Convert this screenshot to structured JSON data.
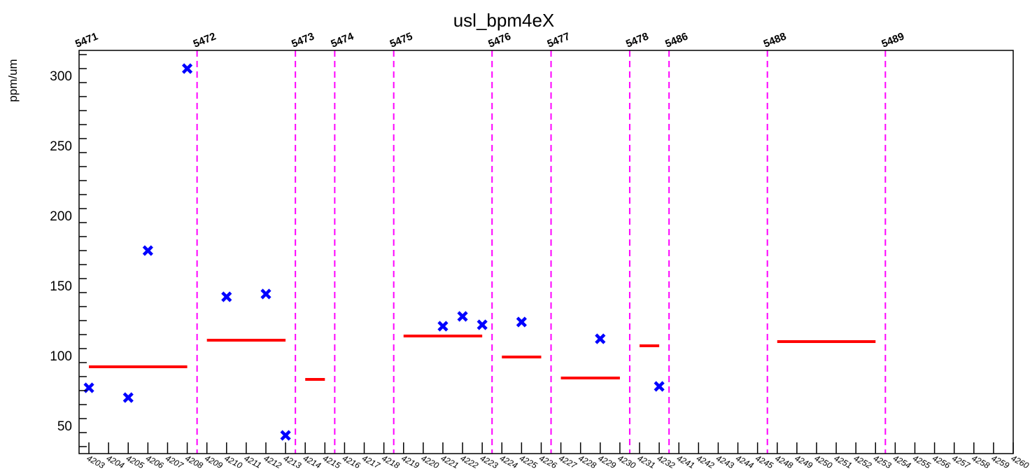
{
  "chart_data": {
    "type": "scatter",
    "title": "usl_bpm4eX",
    "ylabel": "ppm/um",
    "xlabel": "",
    "ylim": [
      30,
      318
    ],
    "xlim": [
      4202.5,
      4260.5
    ],
    "yticks": [
      50,
      100,
      150,
      200,
      250,
      300
    ],
    "x_tick_labels": [
      "4203",
      "4204",
      "4205",
      "4206",
      "4207",
      "4208",
      "4209",
      "4210",
      "4211",
      "4212",
      "4213",
      "4214",
      "4215",
      "4216",
      "4217",
      "4218",
      "4219",
      "4220",
      "4221",
      "4222",
      "4223",
      "4224",
      "4225",
      "4226",
      "4227",
      "4228",
      "4229",
      "4230",
      "4231",
      "4232",
      "4241",
      "4242",
      "4243",
      "4244",
      "4245",
      "4248",
      "4249",
      "4250",
      "4251",
      "4252",
      "4253",
      "4254",
      "4255",
      "4256",
      "4257",
      "4258",
      "4259",
      "4260"
    ],
    "colors": {
      "points": "#0000ff",
      "means": "#ff0000",
      "run_lines": "#ff00ff",
      "axis": "#000000"
    },
    "points": [
      {
        "x": 0,
        "y": 77
      },
      {
        "x": 2,
        "y": 70
      },
      {
        "x": 3,
        "y": 175
      },
      {
        "x": 5,
        "y": 305
      },
      {
        "x": 7,
        "y": 142
      },
      {
        "x": 9,
        "y": 144
      },
      {
        "x": 10,
        "y": 43
      },
      {
        "x": 18,
        "y": 121
      },
      {
        "x": 19,
        "y": 128
      },
      {
        "x": 20,
        "y": 122
      },
      {
        "x": 22,
        "y": 124
      },
      {
        "x": 26,
        "y": 112
      },
      {
        "x": 29,
        "y": 78
      }
    ],
    "means": [
      {
        "x0": 0,
        "x1": 5,
        "y": 92
      },
      {
        "x0": 6,
        "x1": 10,
        "y": 111
      },
      {
        "x0": 11,
        "x1": 12,
        "y": 83
      },
      {
        "x0": 16,
        "x1": 20,
        "y": 114
      },
      {
        "x0": 21,
        "x1": 23,
        "y": 99
      },
      {
        "x0": 24,
        "x1": 27,
        "y": 84
      },
      {
        "x0": 28,
        "x1": 29,
        "y": 107
      },
      {
        "x0": 35,
        "x1": 40,
        "y": 110
      }
    ],
    "run_boundaries": [
      {
        "x": 5.5,
        "label": "5472"
      },
      {
        "x": 10.5,
        "label": "5473"
      },
      {
        "x": 12.5,
        "label": "5474"
      },
      {
        "x": 15.5,
        "label": "5475"
      },
      {
        "x": 20.5,
        "label": "5476"
      },
      {
        "x": 23.5,
        "label": "5477"
      },
      {
        "x": 27.5,
        "label": "5478"
      },
      {
        "x": 29.5,
        "label": "5486"
      },
      {
        "x": 34.5,
        "label": "5488"
      },
      {
        "x": 40.5,
        "label": "5489"
      }
    ],
    "first_run_label": "5471",
    "grid": false,
    "legend": "none"
  }
}
